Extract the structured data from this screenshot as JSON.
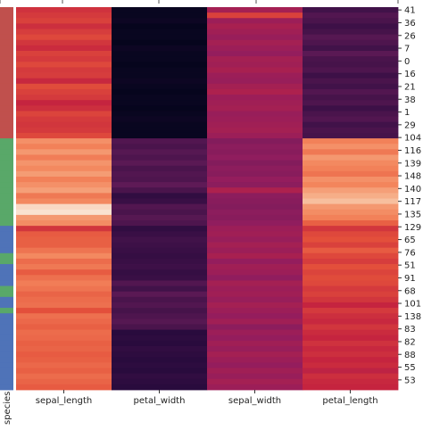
{
  "chart_data": {
    "type": "heatmap",
    "title": "",
    "columns": [
      "sepal_length",
      "petal_width",
      "sepal_width",
      "petal_length"
    ],
    "row_tick_labels": [
      "41",
      "36",
      "26",
      "7",
      "0",
      "16",
      "21",
      "38",
      "1",
      "29",
      "104",
      "116",
      "139",
      "148",
      "140",
      "117",
      "135",
      "129",
      "65",
      "76",
      "51",
      "91",
      "68",
      "101",
      "138",
      "83",
      "82",
      "88",
      "55",
      "53"
    ],
    "row_color_label": "species",
    "row_groups": [
      {
        "color": "#c0504d",
        "count": 24
      },
      {
        "color": "#59a869",
        "count": 16
      },
      {
        "color": "#4f73b8",
        "count": 30
      }
    ],
    "row_color_overrides": [
      {
        "row": 45,
        "color": "#59a869"
      },
      {
        "row": 46,
        "color": "#59a869"
      },
      {
        "row": 51,
        "color": "#59a869"
      },
      {
        "row": 52,
        "color": "#59a869"
      },
      {
        "row": 55,
        "color": "#59a869"
      }
    ],
    "colormap": [
      "#03051a",
      "#2b0b3e",
      "#5e1a56",
      "#921d5e",
      "#c5243f",
      "#e4513b",
      "#f3855c",
      "#f6b48e",
      "#faebdd"
    ],
    "column_levels": [
      [
        0.54,
        0.56,
        0.58,
        0.53,
        0.57,
        0.6,
        0.55,
        0.52,
        0.58,
        0.56,
        0.6,
        0.56,
        0.57,
        0.51,
        0.61,
        0.58,
        0.56,
        0.5,
        0.53,
        0.59,
        0.56,
        0.55,
        0.56,
        0.6,
        0.78,
        0.74,
        0.8,
        0.73,
        0.79,
        0.76,
        0.81,
        0.74,
        0.78,
        0.82,
        0.72,
        0.76,
        0.96,
        0.98,
        0.8,
        0.77,
        0.55,
        0.65,
        0.66,
        0.66,
        0.71,
        0.76,
        0.69,
        0.72,
        0.65,
        0.7,
        0.73,
        0.71,
        0.67,
        0.69,
        0.7,
        0.62,
        0.7,
        0.68,
        0.66,
        0.69,
        0.68,
        0.66,
        0.67,
        0.65,
        0.66,
        0.68,
        0.66,
        0.69,
        0.67,
        0.65
      ],
      [
        0.02,
        0.02,
        0.03,
        0.01,
        0.02,
        0.02,
        0.01,
        0.03,
        0.02,
        0.02,
        0.01,
        0.02,
        0.02,
        0.03,
        0.02,
        0.01,
        0.02,
        0.02,
        0.01,
        0.02,
        0.03,
        0.02,
        0.02,
        0.02,
        0.22,
        0.2,
        0.23,
        0.21,
        0.24,
        0.2,
        0.22,
        0.21,
        0.25,
        0.2,
        0.14,
        0.16,
        0.22,
        0.2,
        0.23,
        0.21,
        0.14,
        0.16,
        0.18,
        0.17,
        0.16,
        0.15,
        0.16,
        0.17,
        0.15,
        0.16,
        0.22,
        0.18,
        0.24,
        0.2,
        0.22,
        0.19,
        0.21,
        0.23,
        0.2,
        0.12,
        0.13,
        0.12,
        0.14,
        0.13,
        0.12,
        0.13,
        0.12,
        0.14,
        0.13,
        0.12
      ],
      [
        0.42,
        0.58,
        0.4,
        0.43,
        0.41,
        0.39,
        0.42,
        0.4,
        0.38,
        0.42,
        0.41,
        0.43,
        0.4,
        0.39,
        0.42,
        0.44,
        0.4,
        0.41,
        0.42,
        0.39,
        0.4,
        0.41,
        0.42,
        0.4,
        0.34,
        0.36,
        0.35,
        0.37,
        0.34,
        0.36,
        0.35,
        0.38,
        0.36,
        0.44,
        0.36,
        0.35,
        0.34,
        0.36,
        0.35,
        0.37,
        0.4,
        0.41,
        0.39,
        0.42,
        0.4,
        0.43,
        0.38,
        0.41,
        0.4,
        0.37,
        0.42,
        0.4,
        0.41,
        0.39,
        0.42,
        0.4,
        0.38,
        0.41,
        0.36,
        0.4,
        0.38,
        0.41,
        0.39,
        0.42,
        0.4,
        0.38,
        0.41,
        0.39,
        0.42,
        0.4
      ],
      [
        0.18,
        0.22,
        0.2,
        0.17,
        0.19,
        0.23,
        0.21,
        0.18,
        0.24,
        0.2,
        0.19,
        0.21,
        0.17,
        0.2,
        0.18,
        0.22,
        0.19,
        0.21,
        0.17,
        0.2,
        0.22,
        0.18,
        0.2,
        0.19,
        0.74,
        0.78,
        0.72,
        0.8,
        0.76,
        0.74,
        0.71,
        0.78,
        0.75,
        0.82,
        0.86,
        0.9,
        0.8,
        0.77,
        0.74,
        0.66,
        0.55,
        0.6,
        0.62,
        0.58,
        0.65,
        0.6,
        0.57,
        0.62,
        0.59,
        0.61,
        0.6,
        0.56,
        0.58,
        0.55,
        0.5,
        0.56,
        0.53,
        0.51,
        0.55,
        0.52,
        0.5,
        0.54,
        0.51,
        0.53,
        0.5,
        0.52,
        0.48,
        0.53,
        0.51,
        0.5
      ]
    ]
  }
}
